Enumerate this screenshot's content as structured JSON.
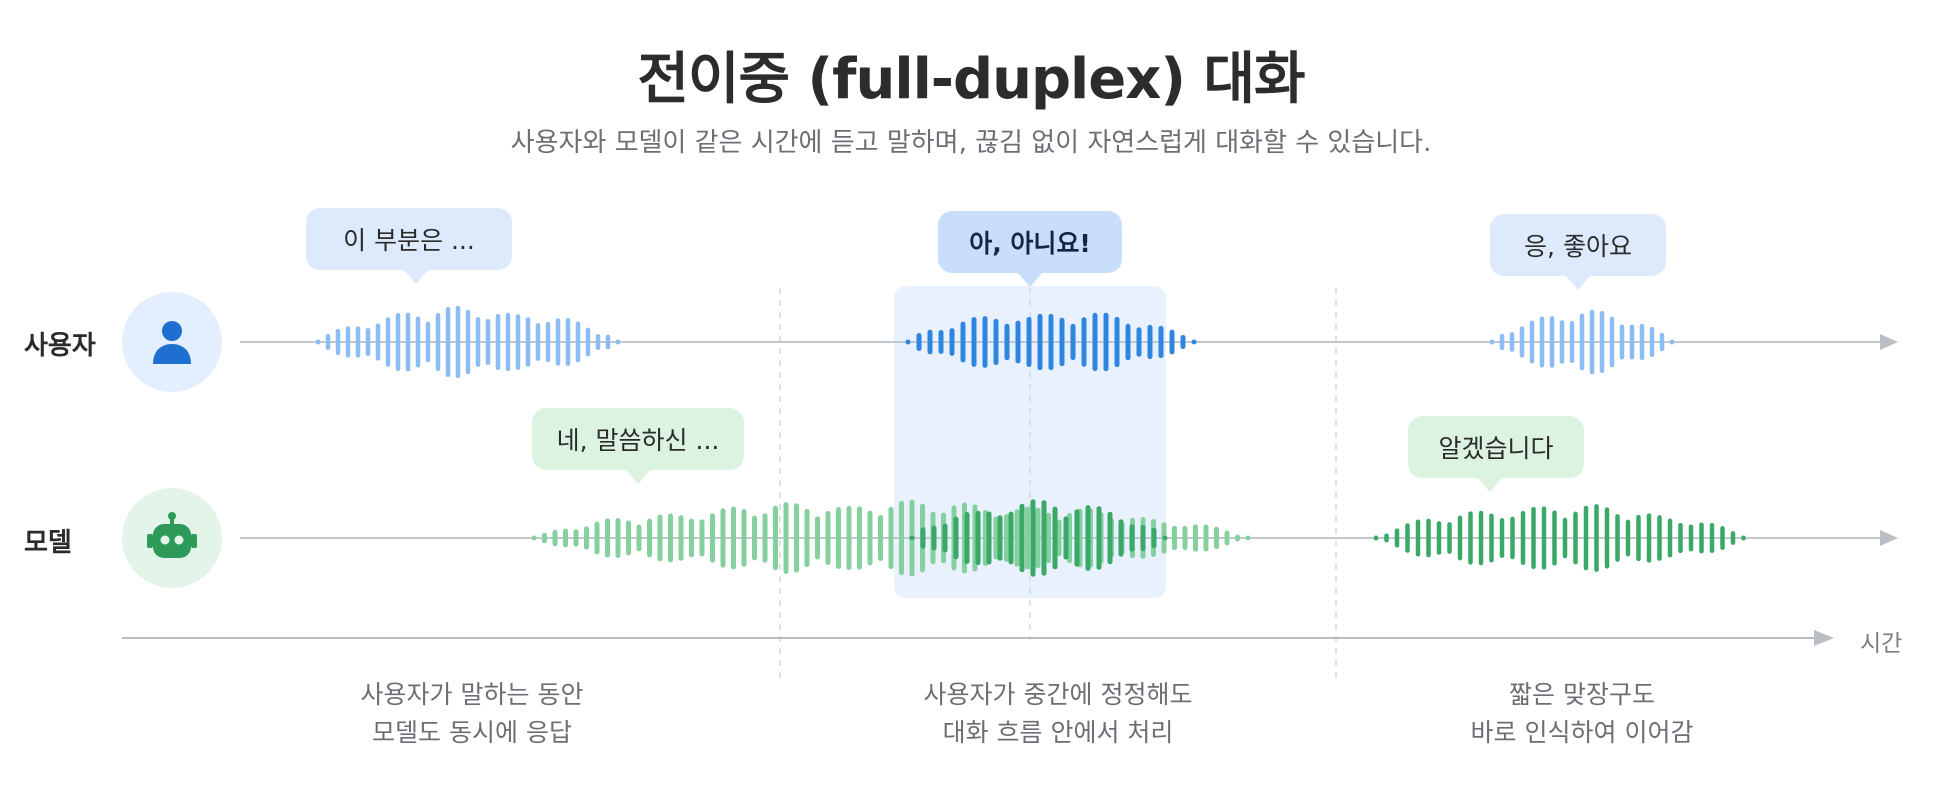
{
  "title": "전이중 (full-duplex) 대화",
  "subtitle": "사용자와 모델이 같은 시간에 듣고 말하며, 끊김 없이 자연스럽게 대화할 수 있습니다.",
  "lanes": {
    "user": {
      "label": "사용자",
      "icon": "person-icon"
    },
    "model": {
      "label": "모델",
      "icon": "robot-icon"
    }
  },
  "bubbles": {
    "user_1": "이 부분은 ...",
    "user_2": "아, 아니요!",
    "user_3": "응, 좋아요",
    "model_1": "네, 말씀하신 ...",
    "model_2": "알겠습니다"
  },
  "time_axis_label": "시간",
  "captions": [
    {
      "line1": "사용자가 말하는 동안",
      "line2": "모델도 동시에 응답"
    },
    {
      "line1": "사용자가 중간에 정정해도",
      "line2": "대화 흐름 안에서 처리"
    },
    {
      "line1": "짧은 맞장구도",
      "line2": "바로 인식하여 이어감"
    }
  ],
  "colors": {
    "user_wave": "#8cbcf4",
    "user_wave_strong": "#2f86e0",
    "model_wave": "#86cf9f",
    "model_wave_strong": "#3aa866",
    "highlight": "#e8f1fd",
    "axis": "#c3c8cf"
  }
}
